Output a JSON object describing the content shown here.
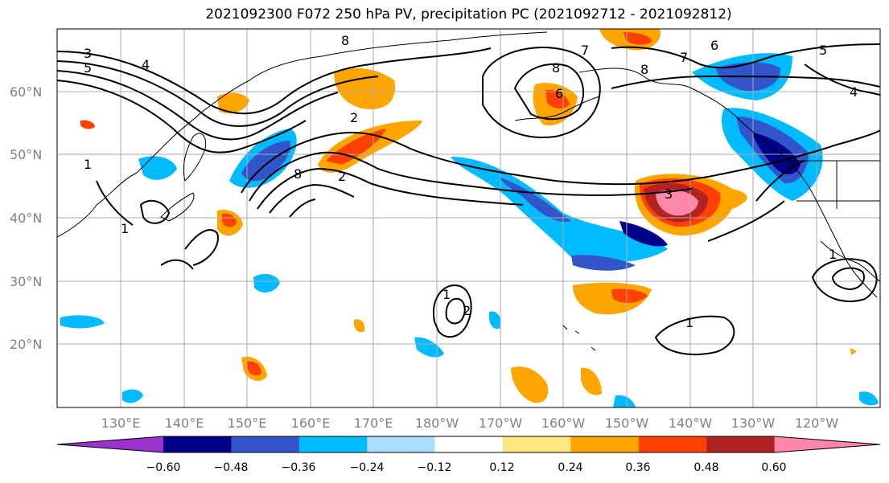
{
  "title": "2021092300 F072 250 hPa PV, precipitation PC (2021092712 - 2021092812)",
  "lat_labels": [
    "60°N",
    "50°N",
    "40°N",
    "30°N",
    "20°N"
  ],
  "lon_labels": [
    "130°E",
    "140°E",
    "150°E",
    "160°E",
    "170°E",
    "180°W",
    "170°W",
    "160°W",
    "150°W",
    "140°W",
    "130°W",
    "120°W"
  ],
  "colorbar": {
    "colors": [
      "#9933cc",
      "#000088",
      "#3355cc",
      "#00bbff",
      "#aaddff",
      "#ffffff",
      "#ffe680",
      "#ffa500",
      "#ff4000",
      "#b22222",
      "#ff88aa"
    ],
    "labels": [
      "−0.60",
      "−0.48",
      "−0.36",
      "−0.24",
      "−0.12",
      "0.12",
      "0.24",
      "0.36",
      "0.48",
      "0.60"
    ]
  },
  "contour_labels": [
    "3",
    "5",
    "4",
    "8",
    "1",
    "2",
    "1",
    "8",
    "2",
    "1",
    "2",
    "1",
    "7",
    "8",
    "6",
    "5",
    "4",
    "3",
    "1",
    "8",
    "7",
    "6"
  ]
}
